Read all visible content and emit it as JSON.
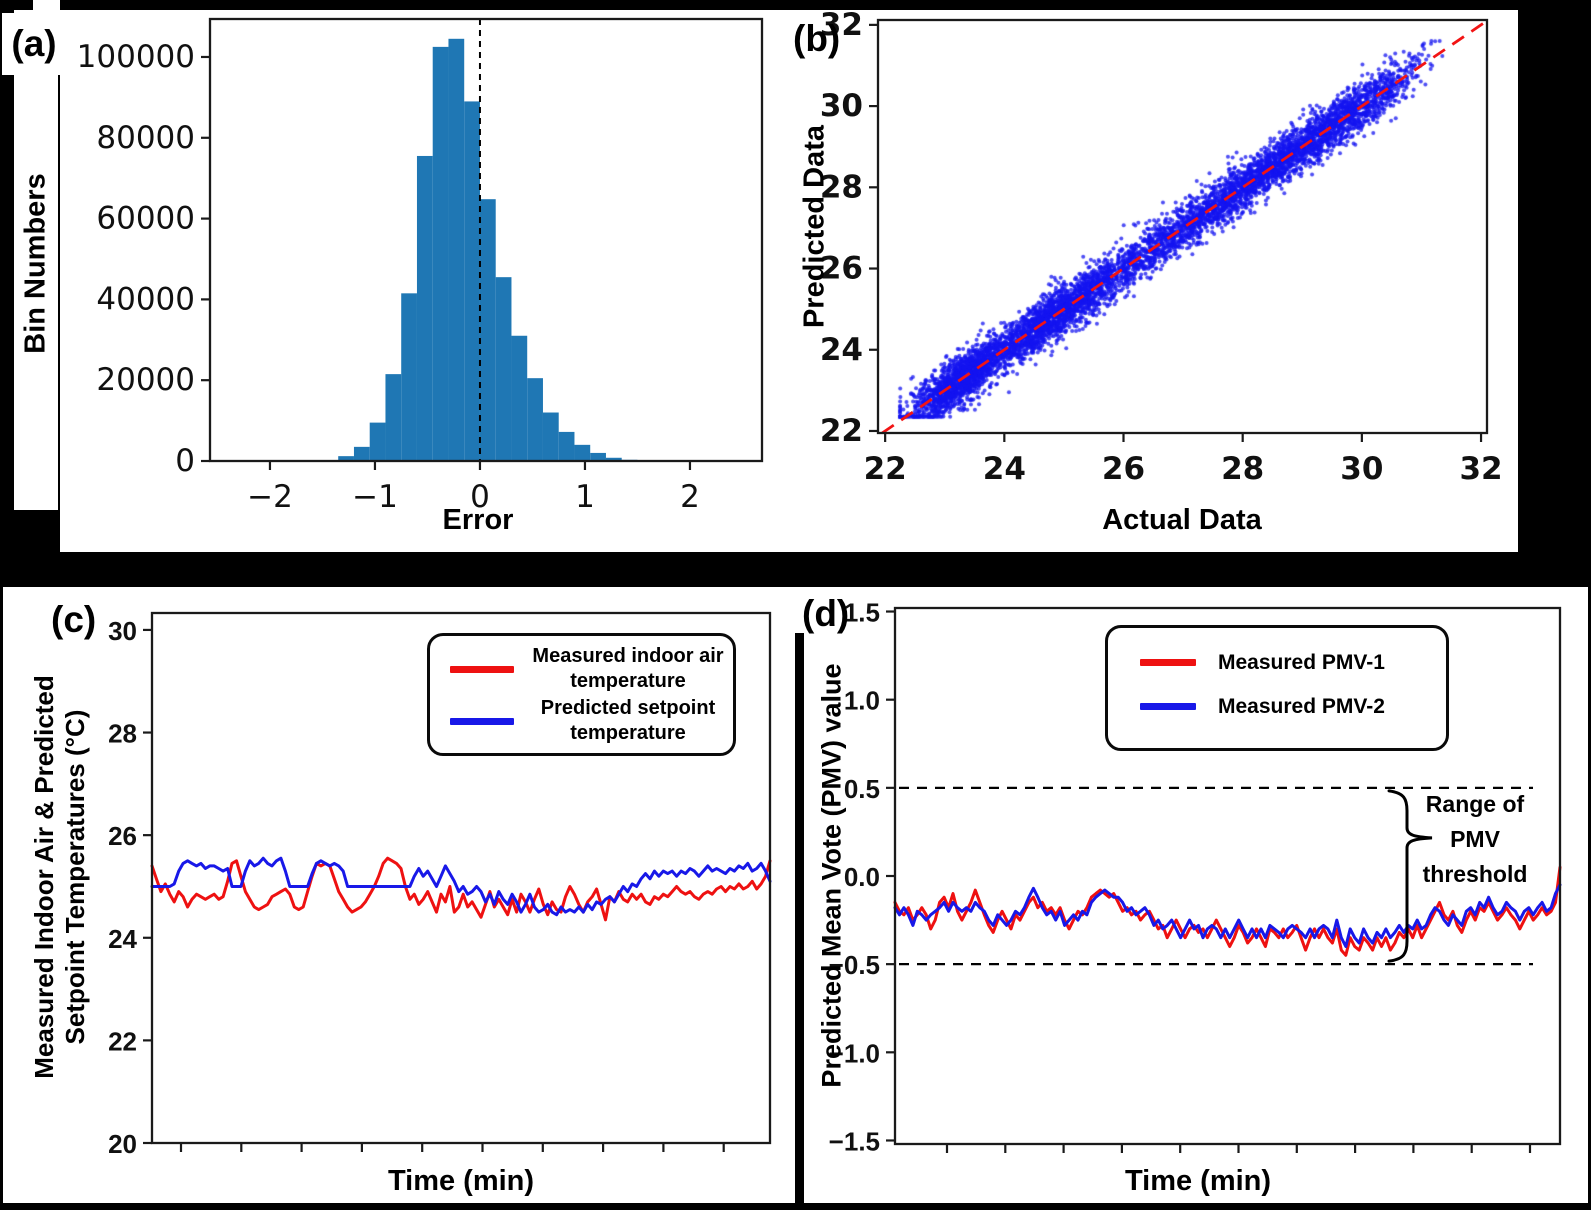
{
  "figure": {
    "background": "#000000",
    "panel_background": "#ffffff",
    "spine_color": "#1a1a1a"
  },
  "chart_data": [
    {
      "type": "bar",
      "panel_label": "(a)",
      "xlabel": "Error",
      "ylabel": "Bin Numbers",
      "xlim": [
        -2.571,
        2.686
      ],
      "ylim": [
        0,
        109400
      ],
      "grid": false,
      "bar_color": "#1f77b4",
      "vline": {
        "x": 0,
        "style": "dashed",
        "color": "#000000"
      },
      "xticks": {
        "values": [
          -2,
          -1,
          0,
          1,
          2
        ],
        "labels": [
          "−2",
          "−1",
          "0",
          "1",
          "2"
        ]
      },
      "yticks": {
        "values": [
          0,
          20000,
          40000,
          60000,
          80000,
          100000
        ],
        "labels": [
          "0",
          "20000",
          "40000",
          "60000",
          "80000",
          "100000"
        ]
      },
      "bin_edges": [
        -1.5,
        -1.35,
        -1.2,
        -1.05,
        -0.9,
        -0.75,
        -0.6,
        -0.45,
        -0.3,
        -0.15,
        0.0,
        0.15,
        0.3,
        0.45,
        0.6,
        0.75,
        0.9,
        1.05,
        1.2,
        1.35,
        1.5
      ],
      "counts": [
        200,
        1200,
        3500,
        9500,
        21500,
        41500,
        75500,
        102500,
        104500,
        89000,
        64800,
        45500,
        31000,
        20500,
        12000,
        7200,
        4000,
        2000,
        800,
        300
      ]
    },
    {
      "type": "scatter",
      "panel_label": "(b)",
      "xlabel": "Actual Data",
      "ylabel": "Predicted Data",
      "xlim": [
        21.88,
        32.1
      ],
      "ylim": [
        21.95,
        32.12
      ],
      "grid": false,
      "xticks": {
        "values": [
          22,
          24,
          26,
          28,
          30,
          32
        ],
        "labels": [
          "22",
          "24",
          "26",
          "28",
          "30",
          "32"
        ]
      },
      "yticks": {
        "values": [
          22,
          24,
          26,
          28,
          30,
          32
        ],
        "labels": [
          "22",
          "24",
          "26",
          "28",
          "30",
          "32"
        ]
      },
      "point_color": "#1414f0",
      "point_alpha": 0.75,
      "point_radius": 2,
      "n_points": 6600,
      "clusters": [
        {
          "x": 23.3,
          "sd": 0.45,
          "n": 1500
        },
        {
          "x": 24.6,
          "sd": 0.5,
          "n": 1000
        },
        {
          "x": 25.3,
          "sd": 0.45,
          "n": 700
        },
        {
          "x": 26.4,
          "sd": 0.55,
          "n": 600
        },
        {
          "x": 27.6,
          "sd": 0.6,
          "n": 900
        },
        {
          "x": 28.6,
          "sd": 0.5,
          "n": 800
        },
        {
          "x": 29.5,
          "sd": 0.45,
          "n": 700
        },
        {
          "x": 30.3,
          "sd": 0.4,
          "n": 400
        }
      ],
      "y_noise_sd": 0.3,
      "x_clip": [
        22.25,
        31.35
      ],
      "y_clip": [
        22.35,
        31.6
      ],
      "seed": 13,
      "identity_line": {
        "from": 21.95,
        "to": 32.1,
        "color": "#f21414",
        "style": "dashed"
      }
    },
    {
      "type": "line",
      "panel_label": "(c)",
      "xlabel": "Time (min)",
      "ylabel": "Measured Indoor Air & Predicted Setpoint Temperatures (°C)",
      "ylabel_lines": [
        "Measured Indoor Air & Predicted",
        "Setpoint Temperatures (°C)"
      ],
      "ylim": [
        20,
        30.33
      ],
      "grid": false,
      "x_ticks_unlabeled": 10,
      "yticks": {
        "values": [
          20,
          22,
          24,
          26,
          28,
          30
        ],
        "labels": [
          "20",
          "22",
          "24",
          "26",
          "28",
          "30"
        ]
      },
      "legend_position": "upper right",
      "series": [
        {
          "name": "Measured indoor air temperature",
          "color": "#ee1111",
          "values": [
            25.4,
            25.15,
            24.9,
            25.05,
            24.85,
            24.7,
            24.9,
            24.8,
            24.6,
            24.75,
            24.85,
            24.8,
            24.75,
            24.8,
            24.85,
            24.75,
            24.8,
            25.1,
            25.45,
            25.5,
            25.2,
            24.9,
            24.75,
            24.6,
            24.55,
            24.6,
            24.65,
            24.8,
            24.85,
            24.9,
            24.95,
            24.85,
            24.6,
            24.55,
            24.6,
            24.9,
            25.2,
            25.45,
            25.4,
            25.45,
            25.4,
            25.15,
            24.9,
            24.75,
            24.6,
            24.5,
            24.55,
            24.6,
            24.7,
            24.85,
            25.0,
            25.2,
            25.45,
            25.55,
            25.5,
            25.45,
            25.35,
            25.0,
            24.75,
            24.85,
            24.65,
            24.75,
            24.9,
            24.7,
            24.5,
            24.85,
            24.7,
            25.0,
            24.5,
            24.6,
            24.85,
            24.6,
            24.7,
            24.55,
            24.4,
            24.65,
            24.9,
            24.6,
            24.75,
            24.6,
            24.45,
            24.75,
            24.5,
            24.85,
            24.7,
            24.5,
            24.75,
            24.95,
            24.65,
            24.45,
            24.7,
            24.55,
            24.5,
            24.8,
            25.0,
            24.85,
            24.65,
            24.5,
            24.7,
            24.8,
            24.95,
            24.65,
            24.35,
            24.8,
            24.7,
            24.9,
            24.75,
            24.7,
            24.85,
            24.75,
            24.85,
            24.7,
            24.65,
            24.8,
            24.75,
            24.85,
            24.8,
            24.9,
            25.0,
            24.9,
            24.85,
            24.9,
            24.8,
            24.75,
            24.85,
            24.9,
            24.85,
            24.95,
            25.0,
            24.9,
            25.0,
            24.95,
            25.05,
            24.95,
            25.0,
            25.1,
            24.95,
            25.05,
            25.2,
            25.5
          ]
        },
        {
          "name": "Predicted setpoint temperature",
          "color": "#1818e8",
          "values": [
            25.0,
            25.0,
            25.0,
            25.0,
            25.0,
            25.05,
            25.3,
            25.45,
            25.5,
            25.45,
            25.4,
            25.45,
            25.35,
            25.4,
            25.4,
            25.35,
            25.3,
            25.35,
            25.0,
            25.0,
            25.0,
            25.3,
            25.5,
            25.4,
            25.45,
            25.55,
            25.45,
            25.4,
            25.5,
            25.55,
            25.3,
            25.0,
            25.0,
            25.0,
            25.0,
            25.0,
            25.25,
            25.45,
            25.5,
            25.45,
            25.4,
            25.45,
            25.4,
            25.3,
            25.0,
            25.0,
            25.0,
            25.0,
            25.0,
            25.0,
            25.0,
            25.0,
            25.0,
            25.0,
            25.0,
            25.0,
            25.0,
            25.0,
            25.0,
            25.2,
            25.35,
            25.2,
            25.3,
            25.15,
            25.0,
            25.2,
            25.4,
            25.25,
            25.1,
            24.9,
            25.0,
            24.85,
            24.9,
            25.0,
            24.9,
            24.7,
            24.85,
            24.65,
            24.9,
            24.75,
            24.65,
            24.85,
            24.7,
            24.5,
            24.65,
            24.85,
            24.6,
            24.5,
            24.55,
            24.65,
            24.5,
            24.45,
            24.6,
            24.5,
            24.55,
            24.5,
            24.6,
            24.5,
            24.65,
            24.55,
            24.7,
            24.65,
            24.75,
            24.8,
            24.7,
            24.85,
            25.0,
            24.9,
            25.05,
            25.0,
            25.15,
            25.25,
            25.15,
            25.3,
            25.2,
            25.3,
            25.25,
            25.3,
            25.2,
            25.3,
            25.25,
            25.35,
            25.3,
            25.2,
            25.3,
            25.4,
            25.3,
            25.35,
            25.3,
            25.25,
            25.35,
            25.3,
            25.4,
            25.35,
            25.45,
            25.3,
            25.35,
            25.45,
            25.3,
            25.1
          ]
        }
      ]
    },
    {
      "type": "line",
      "panel_label": "(d)",
      "xlabel": "Time (min)",
      "ylabel": "Predicted Mean Vote (PMV) value",
      "ylim": [
        -1.52,
        1.52
      ],
      "grid": false,
      "x_ticks_unlabeled": 11,
      "yticks": {
        "values": [
          1.5,
          1.0,
          0.5,
          0.0,
          -0.5,
          -1.0,
          -1.5
        ],
        "labels": [
          "1.5",
          "1.0",
          "0.5",
          "0.0",
          "−0.5",
          "−1.0",
          "−1.5"
        ]
      },
      "thresholds": {
        "upper": 0.5,
        "lower": -0.5,
        "style": "dashed",
        "color": "#000000"
      },
      "annotation": {
        "lines": [
          "Range of",
          "PMV",
          "threshold"
        ]
      },
      "legend_position": "upper right",
      "series": [
        {
          "name": "Measured PMV-1",
          "color": "#ee1111",
          "values": [
            -0.15,
            -0.2,
            -0.22,
            -0.18,
            -0.25,
            -0.22,
            -0.18,
            -0.22,
            -0.3,
            -0.25,
            -0.15,
            -0.12,
            -0.18,
            -0.1,
            -0.2,
            -0.25,
            -0.2,
            -0.15,
            -0.08,
            -0.15,
            -0.22,
            -0.28,
            -0.32,
            -0.25,
            -0.2,
            -0.25,
            -0.3,
            -0.22,
            -0.25,
            -0.2,
            -0.15,
            -0.12,
            -0.18,
            -0.15,
            -0.2,
            -0.18,
            -0.22,
            -0.18,
            -0.25,
            -0.3,
            -0.25,
            -0.2,
            -0.22,
            -0.18,
            -0.12,
            -0.1,
            -0.08,
            -0.1,
            -0.12,
            -0.1,
            -0.15,
            -0.2,
            -0.18,
            -0.22,
            -0.2,
            -0.25,
            -0.22,
            -0.2,
            -0.25,
            -0.3,
            -0.28,
            -0.35,
            -0.3,
            -0.25,
            -0.3,
            -0.35,
            -0.3,
            -0.28,
            -0.32,
            -0.3,
            -0.35,
            -0.3,
            -0.25,
            -0.3,
            -0.35,
            -0.4,
            -0.35,
            -0.28,
            -0.32,
            -0.38,
            -0.35,
            -0.3,
            -0.35,
            -0.4,
            -0.3,
            -0.32,
            -0.35,
            -0.3,
            -0.35,
            -0.32,
            -0.28,
            -0.35,
            -0.42,
            -0.35,
            -0.3,
            -0.35,
            -0.3,
            -0.35,
            -0.38,
            -0.3,
            -0.42,
            -0.45,
            -0.35,
            -0.4,
            -0.42,
            -0.35,
            -0.38,
            -0.42,
            -0.35,
            -0.4,
            -0.35,
            -0.42,
            -0.38,
            -0.32,
            -0.35,
            -0.3,
            -0.35,
            -0.28,
            -0.35,
            -0.3,
            -0.25,
            -0.2,
            -0.15,
            -0.22,
            -0.25,
            -0.2,
            -0.28,
            -0.32,
            -0.25,
            -0.2,
            -0.25,
            -0.18,
            -0.2,
            -0.15,
            -0.2,
            -0.25,
            -0.22,
            -0.18,
            -0.22,
            -0.25,
            -0.3,
            -0.25,
            -0.2,
            -0.25,
            -0.22,
            -0.18,
            -0.22,
            -0.2,
            -0.15,
            0.05
          ]
        },
        {
          "name": "Measured PMV-2",
          "color": "#1818e8",
          "values": [
            -0.18,
            -0.22,
            -0.18,
            -0.22,
            -0.28,
            -0.2,
            -0.22,
            -0.25,
            -0.22,
            -0.2,
            -0.18,
            -0.15,
            -0.2,
            -0.15,
            -0.18,
            -0.2,
            -0.18,
            -0.2,
            -0.15,
            -0.18,
            -0.2,
            -0.25,
            -0.28,
            -0.22,
            -0.25,
            -0.28,
            -0.25,
            -0.2,
            -0.22,
            -0.18,
            -0.12,
            -0.07,
            -0.12,
            -0.18,
            -0.22,
            -0.2,
            -0.25,
            -0.2,
            -0.28,
            -0.25,
            -0.22,
            -0.25,
            -0.2,
            -0.22,
            -0.15,
            -0.12,
            -0.1,
            -0.08,
            -0.1,
            -0.12,
            -0.12,
            -0.15,
            -0.2,
            -0.18,
            -0.22,
            -0.2,
            -0.18,
            -0.22,
            -0.28,
            -0.25,
            -0.3,
            -0.28,
            -0.25,
            -0.3,
            -0.35,
            -0.3,
            -0.25,
            -0.3,
            -0.28,
            -0.35,
            -0.3,
            -0.28,
            -0.3,
            -0.35,
            -0.3,
            -0.35,
            -0.3,
            -0.25,
            -0.3,
            -0.35,
            -0.3,
            -0.35,
            -0.3,
            -0.35,
            -0.28,
            -0.3,
            -0.32,
            -0.35,
            -0.3,
            -0.28,
            -0.3,
            -0.32,
            -0.35,
            -0.3,
            -0.35,
            -0.3,
            -0.28,
            -0.3,
            -0.35,
            -0.25,
            -0.35,
            -0.4,
            -0.3,
            -0.35,
            -0.38,
            -0.3,
            -0.35,
            -0.38,
            -0.32,
            -0.35,
            -0.3,
            -0.35,
            -0.32,
            -0.28,
            -0.32,
            -0.28,
            -0.3,
            -0.25,
            -0.3,
            -0.28,
            -0.22,
            -0.18,
            -0.2,
            -0.25,
            -0.28,
            -0.22,
            -0.25,
            -0.28,
            -0.2,
            -0.18,
            -0.22,
            -0.15,
            -0.18,
            -0.12,
            -0.18,
            -0.22,
            -0.2,
            -0.15,
            -0.18,
            -0.2,
            -0.25,
            -0.2,
            -0.18,
            -0.22,
            -0.18,
            -0.15,
            -0.2,
            -0.18,
            -0.1,
            -0.05
          ]
        }
      ]
    }
  ]
}
